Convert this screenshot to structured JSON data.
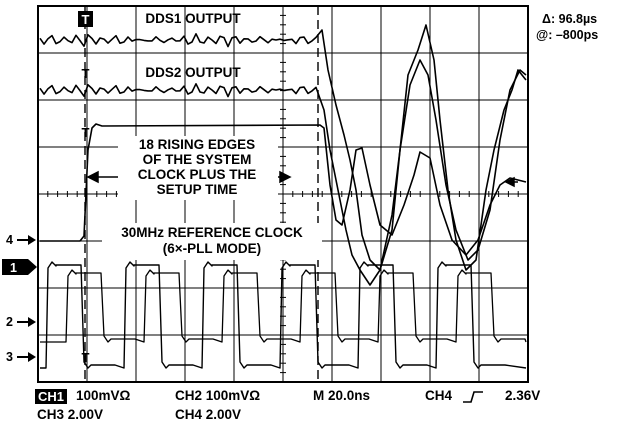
{
  "readout": {
    "delta": "Δ: 96.8µs",
    "at": "@: –800ps"
  },
  "annotations": {
    "dds1": "DDS1 OUTPUT",
    "dds2": "DDS2 OUTPUT",
    "rising_line1": "18 RISING EDGES",
    "rising_line2": "OF THE SYSTEM",
    "rising_line3": "CLOCK PLUS THE",
    "rising_line4": "SETUP TIME",
    "ref_line1": "30MHz REFERENCE CLOCK",
    "ref_line2": "(6×-PLL MODE)"
  },
  "trigger_marks": [
    "T",
    "T",
    "T",
    "T"
  ],
  "channel_markers": {
    "ch1": "1",
    "ch2": "2",
    "ch3": "3",
    "ch4": "4"
  },
  "status": {
    "ch1_label": "CH1",
    "ch1_value": "100mVΩ",
    "ch2": "CH2  100mVΩ",
    "timebase": "M 20.0ns",
    "trigger_ch": "CH4",
    "trigger_level": "2.36V",
    "ch3": "CH3  2.00V",
    "ch4": "CH4  2.00V"
  },
  "colors": {
    "trace": "#000000",
    "background": "#ffffff"
  }
}
